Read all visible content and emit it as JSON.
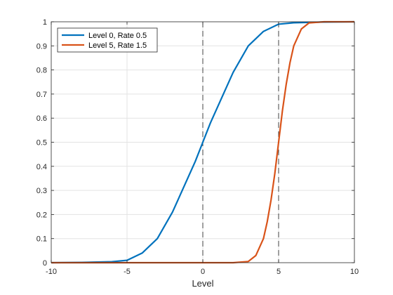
{
  "chart_data": {
    "type": "line",
    "title": "",
    "xlabel": "Level",
    "ylabel": "",
    "xlim": [
      -10,
      10
    ],
    "ylim": [
      0,
      1
    ],
    "grid": true,
    "legend_position": "top-left",
    "x_ticks": [
      "-10",
      "-5",
      "0",
      "5",
      "10"
    ],
    "y_ticks": [
      "0",
      "0.1",
      "0.2",
      "0.3",
      "0.4",
      "0.5",
      "0.6",
      "0.7",
      "0.8",
      "0.9",
      "1"
    ],
    "vertical_reference_lines": [
      0,
      5
    ],
    "series": [
      {
        "name": "Level 0, Rate 0.5",
        "color": "#0072BD",
        "x": [
          -10,
          -8,
          -6,
          -5,
          -4,
          -3,
          -2,
          -1.5,
          -1,
          -0.5,
          0,
          0.5,
          1,
          1.5,
          2,
          3,
          4,
          5,
          6,
          8,
          10
        ],
        "y": [
          0.0,
          0.001,
          0.004,
          0.01,
          0.04,
          0.1,
          0.21,
          0.28,
          0.35,
          0.42,
          0.5,
          0.58,
          0.65,
          0.72,
          0.79,
          0.9,
          0.96,
          0.99,
          0.996,
          0.999,
          1.0
        ]
      },
      {
        "name": "Level 5, Rate 1.5",
        "color": "#D95319",
        "x": [
          -10,
          2,
          3,
          3.5,
          4,
          4.25,
          4.5,
          4.75,
          5,
          5.25,
          5.5,
          5.75,
          6,
          6.5,
          7,
          8,
          10
        ],
        "y": [
          0.0,
          0.0,
          0.005,
          0.03,
          0.1,
          0.17,
          0.26,
          0.37,
          0.5,
          0.63,
          0.74,
          0.83,
          0.9,
          0.97,
          0.995,
          1.0,
          1.0
        ]
      }
    ]
  }
}
